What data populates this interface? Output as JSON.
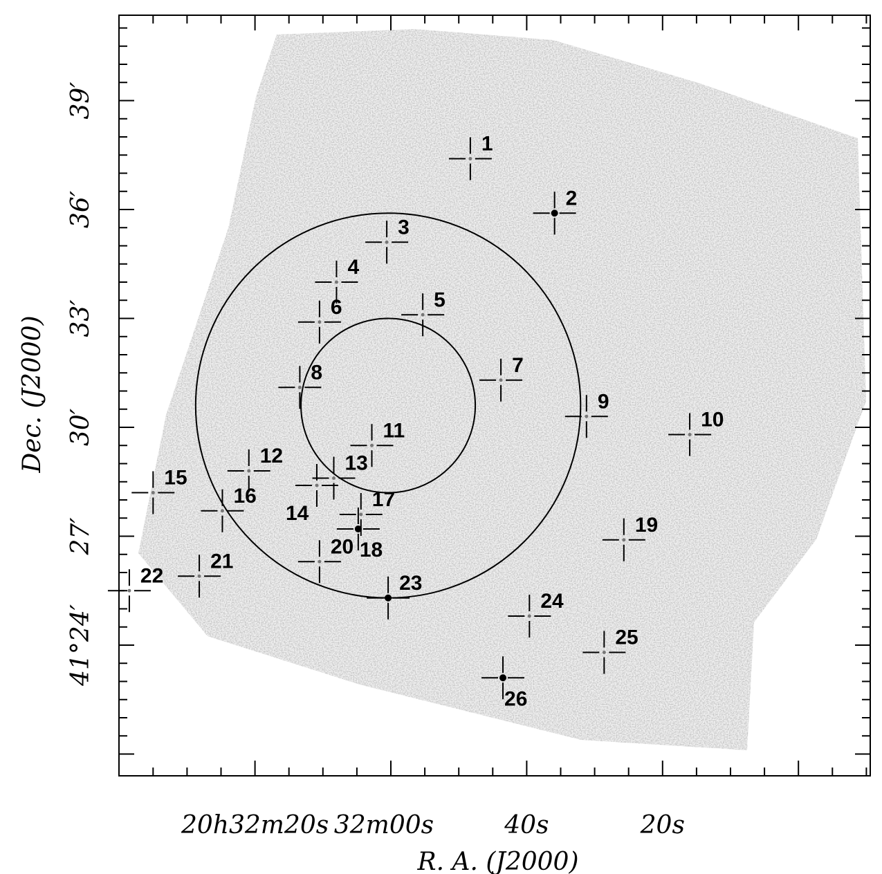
{
  "chart_data": {
    "type": "scatter",
    "xlabel": "R. A. (J2000)",
    "ylabel": "Dec. (J2000)",
    "x_tick_labels": [
      {
        "ra_s": 20,
        "label": "20h32m20s"
      },
      {
        "ra_s": 0,
        "label": "32m00s"
      },
      {
        "ra_s": -20,
        "label": "40s"
      },
      {
        "ra_s": -40,
        "label": "20s"
      }
    ],
    "y_tick_labels": [
      {
        "dec_arcmin": 24,
        "label": "41°24′"
      },
      {
        "dec_arcmin": 27,
        "label": "27′"
      },
      {
        "dec_arcmin": 30,
        "label": "30′"
      },
      {
        "dec_arcmin": 33,
        "label": "33′"
      },
      {
        "dec_arcmin": 36,
        "label": "36′"
      },
      {
        "dec_arcmin": 39,
        "label": "39′"
      }
    ],
    "circles": [
      {
        "name": "inner",
        "center_ra_s": 0.4,
        "center_dec_arcmin": 30.6,
        "radius_arcmin": 2.4
      },
      {
        "name": "outer",
        "center_ra_s": 0.4,
        "center_dec_arcmin": 30.6,
        "radius_arcmin": 5.3
      }
    ],
    "sources": [
      {
        "id": "1",
        "ra_s": -11.7,
        "dec_arcmin": 37.4,
        "bright": false
      },
      {
        "id": "2",
        "ra_s": -24.1,
        "dec_arcmin": 35.9,
        "bright": true
      },
      {
        "id": "3",
        "ra_s": 0.6,
        "dec_arcmin": 35.1,
        "bright": false
      },
      {
        "id": "4",
        "ra_s": 8.0,
        "dec_arcmin": 34.0,
        "bright": false
      },
      {
        "id": "5",
        "ra_s": -4.7,
        "dec_arcmin": 33.1,
        "bright": false
      },
      {
        "id": "6",
        "ra_s": 10.5,
        "dec_arcmin": 32.9,
        "bright": false
      },
      {
        "id": "7",
        "ra_s": -16.2,
        "dec_arcmin": 31.3,
        "bright": false
      },
      {
        "id": "8",
        "ra_s": 13.4,
        "dec_arcmin": 31.1,
        "bright": false
      },
      {
        "id": "9",
        "ra_s": -28.8,
        "dec_arcmin": 30.3,
        "bright": false
      },
      {
        "id": "10",
        "ra_s": -44.0,
        "dec_arcmin": 29.8,
        "bright": false
      },
      {
        "id": "11",
        "ra_s": 2.8,
        "dec_arcmin": 29.5,
        "bright": false
      },
      {
        "id": "12",
        "ra_s": 20.9,
        "dec_arcmin": 28.8,
        "bright": false
      },
      {
        "id": "13",
        "ra_s": 8.4,
        "dec_arcmin": 28.6,
        "bright": false
      },
      {
        "id": "14",
        "ra_s": 10.9,
        "dec_arcmin": 28.4,
        "bright": false
      },
      {
        "id": "15",
        "ra_s": 35.0,
        "dec_arcmin": 28.2,
        "bright": false
      },
      {
        "id": "16",
        "ra_s": 24.8,
        "dec_arcmin": 27.7,
        "bright": false
      },
      {
        "id": "17",
        "ra_s": 4.4,
        "dec_arcmin": 27.6,
        "bright": false
      },
      {
        "id": "18",
        "ra_s": 4.8,
        "dec_arcmin": 27.2,
        "bright": true
      },
      {
        "id": "19",
        "ra_s": -34.3,
        "dec_arcmin": 26.9,
        "bright": false
      },
      {
        "id": "20",
        "ra_s": 10.5,
        "dec_arcmin": 26.3,
        "bright": false
      },
      {
        "id": "21",
        "ra_s": 28.2,
        "dec_arcmin": 25.9,
        "bright": false
      },
      {
        "id": "22",
        "ra_s": 38.5,
        "dec_arcmin": 25.5,
        "bright": false
      },
      {
        "id": "23",
        "ra_s": 0.4,
        "dec_arcmin": 25.3,
        "bright": true
      },
      {
        "id": "24",
        "ra_s": -20.4,
        "dec_arcmin": 24.8,
        "bright": false
      },
      {
        "id": "25",
        "ra_s": -31.4,
        "dec_arcmin": 23.8,
        "bright": false
      },
      {
        "id": "26",
        "ra_s": -16.5,
        "dec_arcmin": 23.1,
        "bright": true
      }
    ],
    "grid": false,
    "colors": {
      "frame": "#000000",
      "background": "#ffffff",
      "field": "#d9d9d9",
      "source": "#000000"
    }
  }
}
